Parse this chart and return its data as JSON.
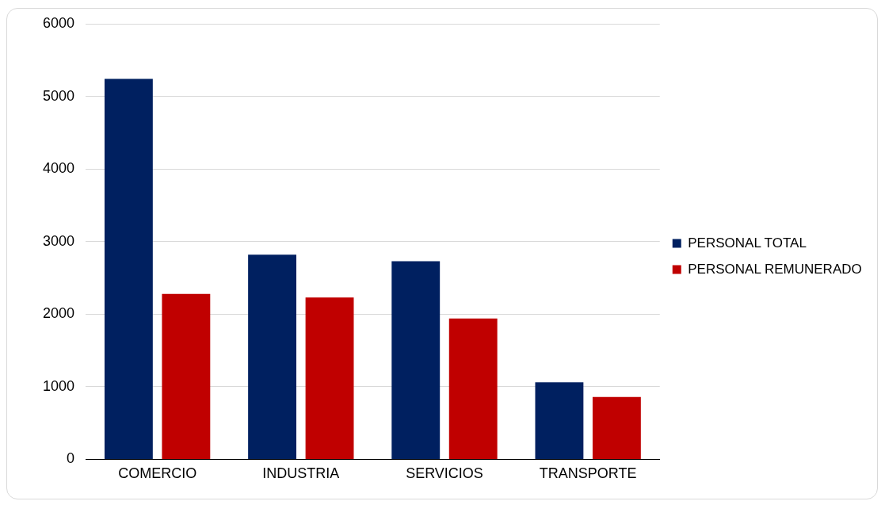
{
  "chart_data": {
    "type": "bar",
    "categories": [
      "COMERCIO",
      "INDUSTRIA",
      "SERVICIOS",
      "TRANSPORTE"
    ],
    "series": [
      {
        "name": "PERSONAL TOTAL",
        "color": "#002060",
        "values": [
          5240,
          2820,
          2730,
          1060
        ]
      },
      {
        "name": "PERSONAL REMUNERADO",
        "color": "#c00000",
        "values": [
          2280,
          2230,
          1940,
          860
        ]
      }
    ],
    "ylim": [
      0,
      6000
    ],
    "yticks": [
      0,
      1000,
      2000,
      3000,
      4000,
      5000,
      6000
    ],
    "grid": "y",
    "legend": "right"
  }
}
